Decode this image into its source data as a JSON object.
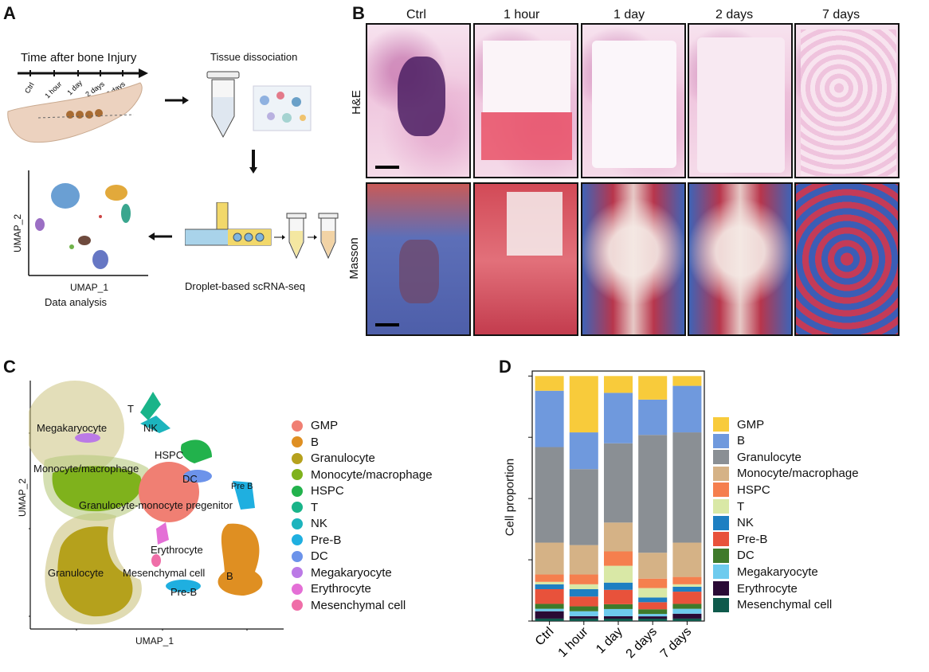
{
  "panels": {
    "A": {
      "letter": "A",
      "timeline_title": "Time after bone Injury",
      "timeline_ticks": [
        "Ctrl",
        "1 hour",
        "1 day",
        "2 days",
        "7 days"
      ],
      "tissue_title": "Tissue dissociation",
      "seq_caption": "Droplet-based scRNA-seq",
      "analysis_caption": "Data analysis",
      "umap_x": "UMAP_1",
      "umap_y": "UMAP_2"
    },
    "B": {
      "letter": "B",
      "columns": [
        "Ctrl",
        "1 hour",
        "1 day",
        "2 days",
        "7 days"
      ],
      "rows": [
        "H&E",
        "Masson"
      ]
    },
    "C": {
      "letter": "C",
      "umap_x": "UMAP_1",
      "umap_y": "UMAP_2",
      "cluster_labels": [
        "T",
        "NK",
        "Megakaryocyte",
        "HSPC",
        "DC",
        "Monocyte/macrophage",
        "Pre B",
        "Granulocyte-monocyte pregenitor",
        "Erythrocyte",
        "Granulocyte",
        "Mesenchymal cell",
        "B",
        "Pre-B"
      ],
      "legend": [
        {
          "label": "GMP",
          "color": "#f07f73"
        },
        {
          "label": "B",
          "color": "#df8f22"
        },
        {
          "label": "Granulocyte",
          "color": "#b6a11d"
        },
        {
          "label": "Monocyte/macrophage",
          "color": "#7fb21c"
        },
        {
          "label": "HSPC",
          "color": "#22b24c"
        },
        {
          "label": "T",
          "color": "#19b489"
        },
        {
          "label": "NK",
          "color": "#1cb4bd"
        },
        {
          "label": "Pre-B",
          "color": "#1fafe0"
        },
        {
          "label": "DC",
          "color": "#6c93ea"
        },
        {
          "label": "Megakaryocyte",
          "color": "#bb7ae6"
        },
        {
          "label": "Erythrocyte",
          "color": "#e46fd6"
        },
        {
          "label": "Mesenchymal cell",
          "color": "#ef6ea8"
        }
      ]
    },
    "D": {
      "letter": "D",
      "ylabel": "Cell proportion"
    }
  },
  "chart_data": {
    "type": "bar",
    "stacked": true,
    "categories": [
      "Ctrl",
      "1 hour",
      "1 day",
      "2 days",
      "7 days"
    ],
    "ylabel": "Cell proportion",
    "ylim": [
      0,
      1
    ],
    "series": [
      {
        "name": "Mesenchymal cell",
        "color": "#0f5a4c",
        "values": [
          0.01,
          0.01,
          0.01,
          0.01,
          0.01
        ]
      },
      {
        "name": "Erythrocyte",
        "color": "#2a0a35",
        "values": [
          0.03,
          0.01,
          0.01,
          0.01,
          0.02
        ]
      },
      {
        "name": "Megakaryocyte",
        "color": "#6ecbee",
        "values": [
          0.01,
          0.02,
          0.03,
          0.01,
          0.02
        ]
      },
      {
        "name": "DC",
        "color": "#3f7a2a",
        "values": [
          0.02,
          0.02,
          0.02,
          0.02,
          0.02
        ]
      },
      {
        "name": "Pre-B",
        "color": "#e8523b",
        "values": [
          0.06,
          0.04,
          0.06,
          0.03,
          0.05
        ]
      },
      {
        "name": "NK",
        "color": "#1e7fc2",
        "values": [
          0.02,
          0.03,
          0.03,
          0.02,
          0.02
        ]
      },
      {
        "name": "T",
        "color": "#d9e8a6",
        "values": [
          0.01,
          0.02,
          0.07,
          0.04,
          0.01
        ]
      },
      {
        "name": "HSPC",
        "color": "#f57f4e",
        "values": [
          0.03,
          0.04,
          0.06,
          0.04,
          0.03
        ]
      },
      {
        "name": "Monocyte/macrophage",
        "color": "#d5b286",
        "values": [
          0.13,
          0.12,
          0.12,
          0.11,
          0.14
        ]
      },
      {
        "name": "Granulocyte",
        "color": "#8a8f94",
        "values": [
          0.39,
          0.31,
          0.33,
          0.5,
          0.45
        ]
      },
      {
        "name": "B",
        "color": "#6f99dd",
        "values": [
          0.23,
          0.15,
          0.21,
          0.15,
          0.19
        ]
      },
      {
        "name": "GMP",
        "color": "#f8cb3b",
        "values": [
          0.06,
          0.23,
          0.07,
          0.1,
          0.04
        ]
      }
    ]
  }
}
